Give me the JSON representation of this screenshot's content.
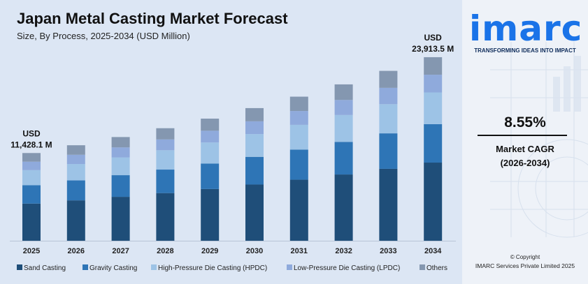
{
  "chart_data": {
    "type": "bar",
    "stacked": true,
    "title": "Japan Metal Casting Market Forecast",
    "subtitle": "Size, By Process, 2025-2034 (USD Million)",
    "categories": [
      "2025",
      "2026",
      "2027",
      "2028",
      "2029",
      "2030",
      "2031",
      "2032",
      "2033",
      "2034"
    ],
    "series": [
      {
        "name": "Sand Casting",
        "color": "#1f4e79",
        "values": [
          4840,
          5260,
          5720,
          6210,
          6740,
          7320,
          7950,
          8630,
          9370,
          10180
        ]
      },
      {
        "name": "Gravity Casting",
        "color": "#2e75b6",
        "values": [
          2390,
          2600,
          2820,
          3060,
          3320,
          3610,
          3920,
          4250,
          4620,
          5010
        ]
      },
      {
        "name": "High-Pressure Die Casting (HPDC)",
        "color": "#9dc3e6",
        "values": [
          1970,
          2140,
          2320,
          2520,
          2740,
          2970,
          3230,
          3500,
          3800,
          4130
        ]
      },
      {
        "name": "Low-Pressure Die Casting (LPDC)",
        "color": "#8faadc",
        "values": [
          1100,
          1200,
          1300,
          1410,
          1530,
          1660,
          1800,
          1960,
          2130,
          2310
        ]
      },
      {
        "name": "Others",
        "color": "#8497b0",
        "values": [
          1128.1,
          1240,
          1350,
          1460,
          1580,
          1720,
          1870,
          2030,
          2210,
          2283.5
        ]
      }
    ],
    "annotations": [
      {
        "category": "2025",
        "currency": "USD",
        "value": "11,428.1 M"
      },
      {
        "category": "2034",
        "currency": "USD",
        "value": "23,913.5 M"
      }
    ],
    "ylim": [
      0,
      25000
    ],
    "legend_position": "bottom",
    "grid": false
  },
  "side": {
    "logo_text": "imarc",
    "tagline": "TRANSFORMING IDEAS INTO IMPACT",
    "cagr_value": "8.55%",
    "cagr_label": "Market CAGR",
    "cagr_period": "(2026-2034)",
    "copyright": "© Copyright",
    "copyright_holder": "IMARC Services Private Limited 2025"
  }
}
